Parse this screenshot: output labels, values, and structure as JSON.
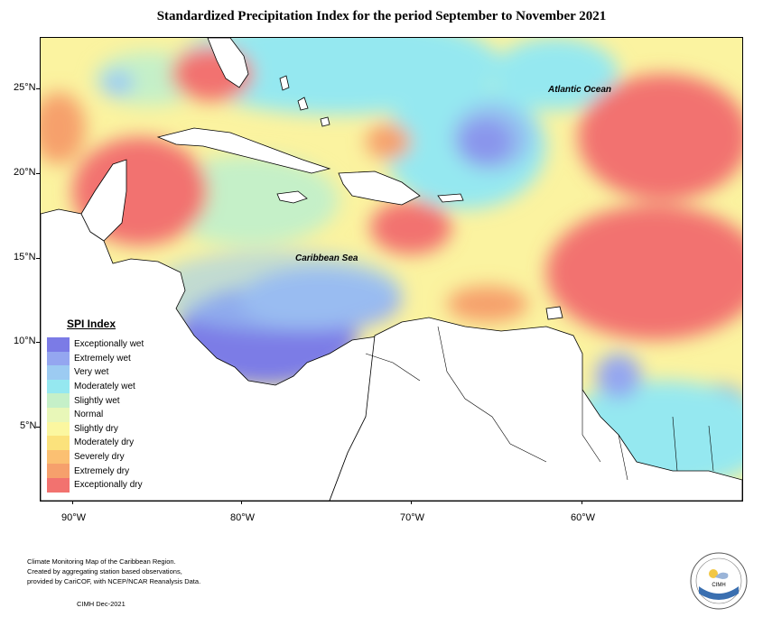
{
  "title": "Standardized Precipitation Index for the period September to November 2021",
  "map": {
    "latitude_labels": [
      "25°N",
      "20°N",
      "15°N",
      "10°N",
      "5°N"
    ],
    "longitude_labels": [
      "90°W",
      "80°W",
      "70°W",
      "60°W"
    ],
    "labels": {
      "atlantic": "Atlantic Ocean",
      "caribbean": "Caribbean Sea"
    }
  },
  "legend": {
    "title": "SPI Index",
    "items": [
      {
        "label": "Exceptionally wet",
        "color": "#7b7be6"
      },
      {
        "label": "Extremely wet",
        "color": "#94a6f0"
      },
      {
        "label": "Very wet",
        "color": "#9ccbf2"
      },
      {
        "label": "Moderately wet",
        "color": "#95e8f0"
      },
      {
        "label": "Slightly wet",
        "color": "#c5f0c8"
      },
      {
        "label": "Normal",
        "color": "#e8f7b8"
      },
      {
        "label": "Slightly dry",
        "color": "#fbf7a0"
      },
      {
        "label": "Moderately dry",
        "color": "#fbe27c"
      },
      {
        "label": "Severely dry",
        "color": "#fbc072"
      },
      {
        "label": "Extremely dry",
        "color": "#f6a06c"
      },
      {
        "label": "Exceptionally dry",
        "color": "#f2726f"
      }
    ]
  },
  "footer": {
    "line1": "Climate Monitoring Map of the Caribbean Region.",
    "line2": "Created by aggregating station based observations,",
    "line3": "provided by CariCOF, with NCEP/NCAR Reanalysis Data.",
    "date": "CIMH Dec-2021"
  },
  "logo": {
    "text": "CIMH"
  }
}
